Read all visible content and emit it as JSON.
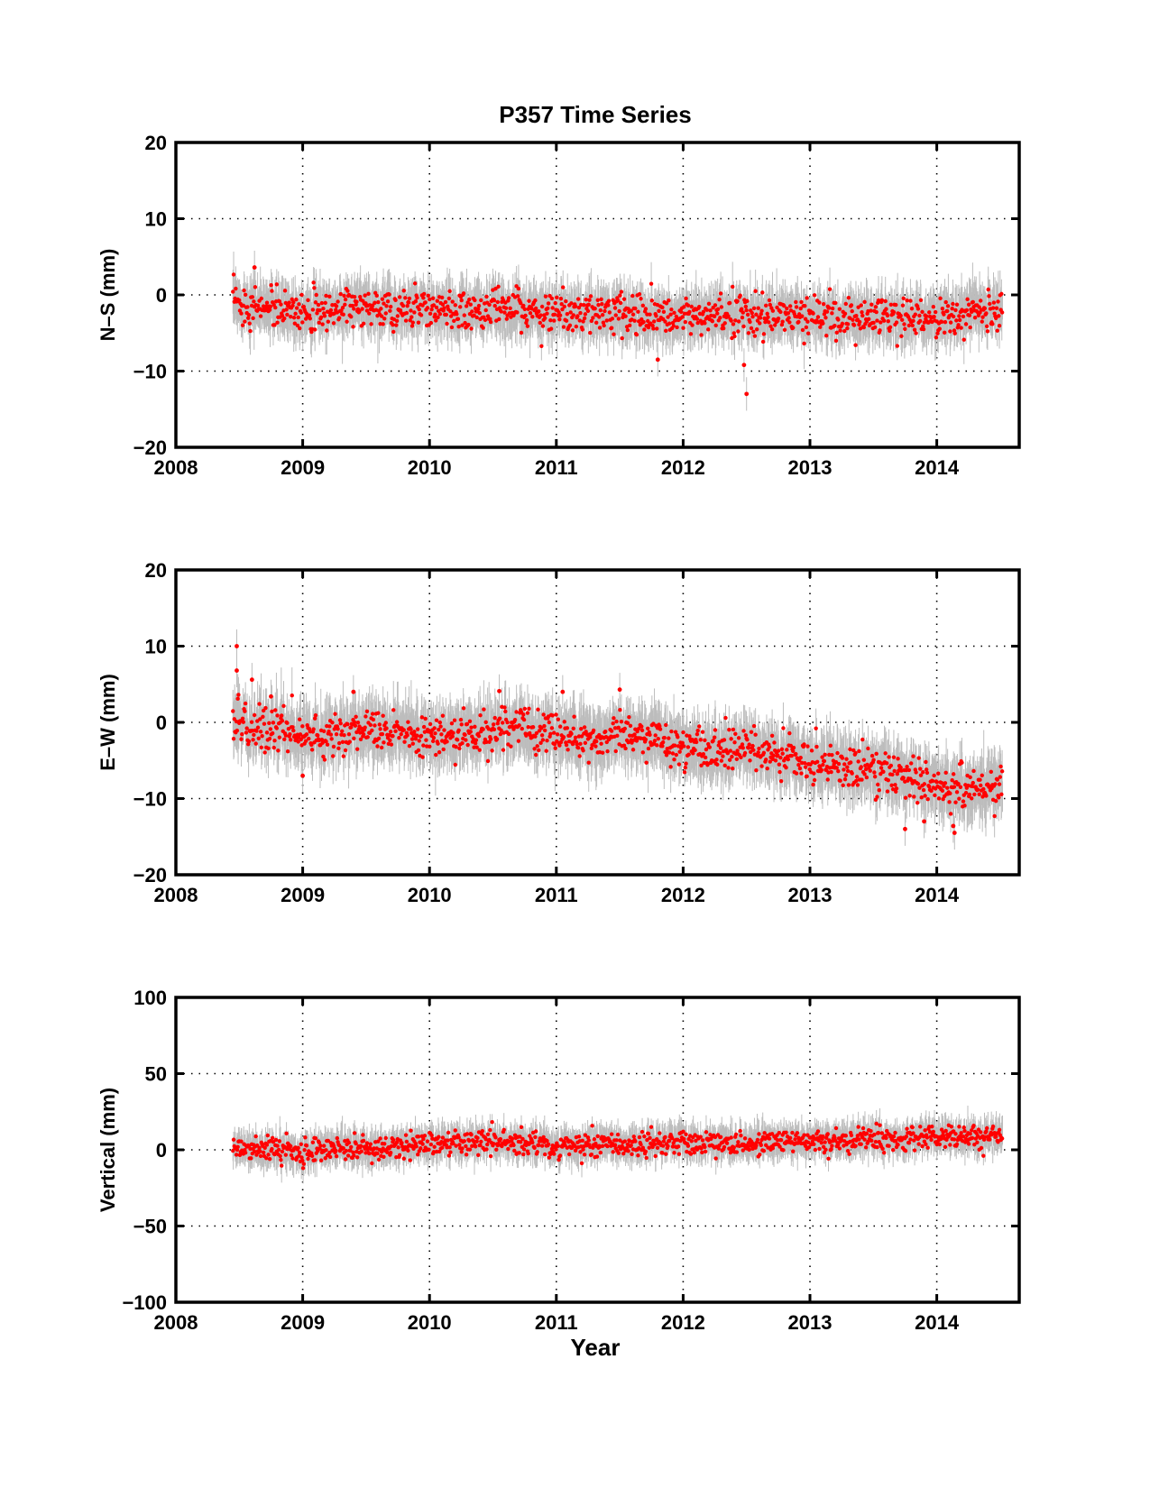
{
  "figure": {
    "title": "P357 Time Series",
    "xlabel": "Year"
  },
  "chart_data": [
    {
      "type": "scatter",
      "ylabel": "N–S (mm)",
      "xlim": [
        2008,
        2014.65
      ],
      "ylim": [
        -20,
        20
      ],
      "xticks": [
        "2008",
        "2009",
        "2010",
        "2011",
        "2012",
        "2013",
        "2014"
      ],
      "yticks": [
        "−20",
        "−10",
        "0",
        "10",
        "20"
      ],
      "grid": true,
      "point_color": "#ff0000",
      "errorbar_color": "#bdbdbd",
      "series": [
        {
          "x": [
            2008.45,
            2008.55,
            2008.65,
            2008.75,
            2008.85,
            2008.95,
            2009.05,
            2009.15,
            2009.25,
            2009.35,
            2009.45,
            2009.55,
            2009.65,
            2009.75,
            2009.85,
            2009.95,
            2010.05,
            2010.15,
            2010.25,
            2010.35,
            2010.45,
            2010.55,
            2010.65,
            2010.75,
            2010.85,
            2010.95,
            2011.05,
            2011.15,
            2011.25,
            2011.35,
            2011.45,
            2011.55,
            2011.65,
            2011.75,
            2011.85,
            2011.95,
            2012.05,
            2012.15,
            2012.25,
            2012.35,
            2012.45,
            2012.55,
            2012.65,
            2012.75,
            2012.85,
            2012.95,
            2013.05,
            2013.15,
            2013.25,
            2013.35,
            2013.45,
            2013.55,
            2013.65,
            2013.75,
            2013.85,
            2013.95,
            2014.05,
            2014.15,
            2014.25,
            2014.35,
            2014.5
          ],
          "y": [
            -1,
            -1.2,
            -1.5,
            -1.8,
            -2,
            -2.1,
            -2,
            -1.9,
            -1.8,
            -1.7,
            -1.6,
            -1.6,
            -1.7,
            -1.8,
            -2,
            -2.1,
            -2.2,
            -2.3,
            -2.2,
            -2.1,
            -2,
            -1.9,
            -2,
            -2.1,
            -2.2,
            -2.2,
            -2.3,
            -2.5,
            -2.6,
            -2.5,
            -2.4,
            -2.5,
            -2.6,
            -2.7,
            -2.8,
            -2.8,
            -2.9,
            -3,
            -2.9,
            -2.8,
            -2.7,
            -2.6,
            -2.7,
            -2.8,
            -2.8,
            -2.9,
            -2.9,
            -3,
            -3,
            -2.9,
            -2.8,
            -3,
            -3.1,
            -3,
            -2.9,
            -2.8,
            -2.7,
            -2.5,
            -2.3,
            -2,
            -1.8
          ],
          "scatter_mm": 1.3,
          "errorbar_mm": 2.4
        }
      ],
      "outliers": [
        {
          "x": 2012.5,
          "y": -13
        },
        {
          "x": 2012.48,
          "y": -9.2
        },
        {
          "x": 2008.62,
          "y": 3.6
        },
        {
          "x": 2011.8,
          "y": -8.5
        }
      ]
    },
    {
      "type": "scatter",
      "ylabel": "E–W (mm)",
      "xlim": [
        2008,
        2014.65
      ],
      "ylim": [
        -20,
        20
      ],
      "xticks": [
        "2008",
        "2009",
        "2010",
        "2011",
        "2012",
        "2013",
        "2014"
      ],
      "yticks": [
        "−20",
        "−10",
        "0",
        "10",
        "20"
      ],
      "grid": true,
      "point_color": "#ff0000",
      "errorbar_color": "#bdbdbd",
      "series": [
        {
          "x": [
            2008.45,
            2008.55,
            2008.65,
            2008.75,
            2008.85,
            2008.95,
            2009.05,
            2009.15,
            2009.25,
            2009.35,
            2009.45,
            2009.55,
            2009.65,
            2009.75,
            2009.85,
            2009.95,
            2010.05,
            2010.15,
            2010.25,
            2010.35,
            2010.45,
            2010.55,
            2010.65,
            2010.75,
            2010.85,
            2010.95,
            2011.05,
            2011.15,
            2011.25,
            2011.35,
            2011.45,
            2011.55,
            2011.65,
            2011.75,
            2011.85,
            2011.95,
            2012.05,
            2012.15,
            2012.25,
            2012.35,
            2012.45,
            2012.55,
            2012.65,
            2012.75,
            2012.85,
            2012.95,
            2013.05,
            2013.15,
            2013.25,
            2013.35,
            2013.45,
            2013.55,
            2013.65,
            2013.75,
            2013.85,
            2013.95,
            2014.05,
            2014.15,
            2014.25,
            2014.35,
            2014.5
          ],
          "y": [
            0,
            -0.3,
            -0.6,
            -1,
            -1.3,
            -1.5,
            -1.6,
            -1.6,
            -1.5,
            -1.4,
            -1.3,
            -1.3,
            -1.2,
            -1.3,
            -1.5,
            -1.7,
            -1.8,
            -1.8,
            -1.6,
            -1.3,
            -1,
            -0.8,
            -0.9,
            -1.1,
            -1.3,
            -1.4,
            -1.5,
            -1.8,
            -2,
            -1.9,
            -1.7,
            -1.6,
            -1.7,
            -2,
            -2.4,
            -2.8,
            -3.2,
            -3.6,
            -3.8,
            -3.6,
            -3.4,
            -3.5,
            -3.8,
            -4.2,
            -4.6,
            -5,
            -5.3,
            -5.6,
            -5.8,
            -6,
            -6.1,
            -6.3,
            -6.6,
            -7,
            -7.4,
            -7.9,
            -8.4,
            -8.8,
            -8.6,
            -8.3,
            -7.9
          ],
          "scatter_mm": 1.4,
          "errorbar_mm": 2.8
        }
      ],
      "outliers": [
        {
          "x": 2008.48,
          "y": 10
        },
        {
          "x": 2008.48,
          "y": 6.8
        },
        {
          "x": 2008.6,
          "y": 5.6
        },
        {
          "x": 2008.75,
          "y": 3.4
        },
        {
          "x": 2009.0,
          "y": -7
        },
        {
          "x": 2009.4,
          "y": 4
        },
        {
          "x": 2010.55,
          "y": 4.1
        },
        {
          "x": 2011.05,
          "y": 4
        },
        {
          "x": 2011.5,
          "y": 4.3
        },
        {
          "x": 2013.75,
          "y": -14
        },
        {
          "x": 2013.9,
          "y": -13
        },
        {
          "x": 2014.13,
          "y": -13.6
        },
        {
          "x": 2014.14,
          "y": -14.5
        }
      ]
    },
    {
      "type": "scatter",
      "ylabel": "Vertical (mm)",
      "xlim": [
        2008,
        2014.65
      ],
      "ylim": [
        -100,
        100
      ],
      "xticks": [
        "2008",
        "2009",
        "2010",
        "2011",
        "2012",
        "2013",
        "2014"
      ],
      "yticks": [
        "−100",
        "−50",
        "0",
        "50",
        "100"
      ],
      "grid": true,
      "point_color": "#ff0000",
      "errorbar_color": "#bdbdbd",
      "series": [
        {
          "x": [
            2008.45,
            2008.55,
            2008.65,
            2008.75,
            2008.85,
            2008.95,
            2009.05,
            2009.15,
            2009.25,
            2009.35,
            2009.45,
            2009.55,
            2009.65,
            2009.75,
            2009.85,
            2009.95,
            2010.05,
            2010.15,
            2010.25,
            2010.35,
            2010.45,
            2010.55,
            2010.65,
            2010.75,
            2010.85,
            2010.95,
            2011.05,
            2011.15,
            2011.25,
            2011.35,
            2011.45,
            2011.55,
            2011.65,
            2011.75,
            2011.85,
            2011.95,
            2012.05,
            2012.15,
            2012.25,
            2012.35,
            2012.45,
            2012.55,
            2012.65,
            2012.75,
            2012.85,
            2012.95,
            2013.05,
            2013.15,
            2013.25,
            2013.35,
            2013.45,
            2013.55,
            2013.65,
            2013.75,
            2013.85,
            2013.95,
            2014.05,
            2014.15,
            2014.25,
            2014.35,
            2014.5
          ],
          "y": [
            2,
            1,
            0.5,
            0,
            -1,
            -2,
            -1,
            0,
            1,
            2,
            1,
            0,
            1,
            2,
            3,
            4,
            3,
            3,
            4,
            5,
            5,
            6,
            5,
            4,
            4,
            3,
            2,
            2,
            3,
            4,
            4,
            3,
            3,
            4,
            5,
            5,
            4,
            3,
            4,
            5,
            5,
            4,
            4,
            5,
            6,
            6,
            5,
            5,
            6,
            7,
            7,
            6,
            6,
            7,
            8,
            9,
            9,
            8,
            8,
            8,
            9
          ],
          "scatter_mm": 4,
          "errorbar_mm": 8
        }
      ],
      "outliers": []
    }
  ]
}
